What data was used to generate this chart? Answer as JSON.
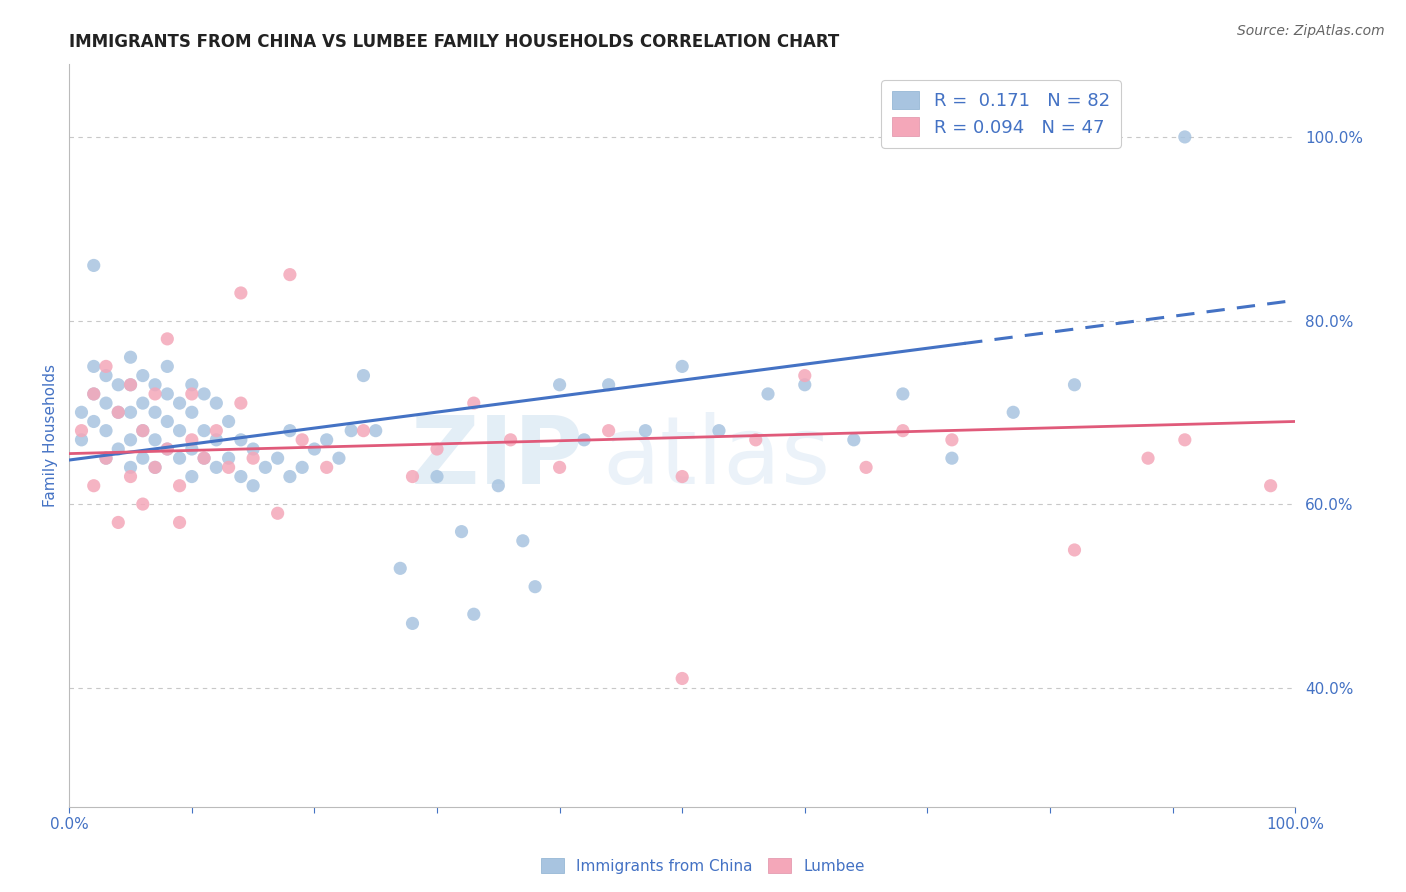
{
  "title": "IMMIGRANTS FROM CHINA VS LUMBEE FAMILY HOUSEHOLDS CORRELATION CHART",
  "source_text": "Source: ZipAtlas.com",
  "ylabel": "Family Households",
  "right_ytick_labels": [
    "40.0%",
    "60.0%",
    "80.0%",
    "100.0%"
  ],
  "right_ytick_values": [
    0.4,
    0.6,
    0.8,
    1.0
  ],
  "xlim": [
    0.0,
    1.0
  ],
  "ylim": [
    0.27,
    1.08
  ],
  "blue_color": "#a8c4e0",
  "blue_line_color": "#4472c4",
  "pink_color": "#f4a7b9",
  "pink_line_color": "#e05a7a",
  "legend_blue_label": "R =  0.171   N = 82",
  "legend_pink_label": "R = 0.094   N = 47",
  "watermark_zip": "ZIP",
  "watermark_atlas": "atlas",
  "grid_color": "#c8c8c8",
  "title_fontsize": 12,
  "tick_label_color": "#4472c4",
  "background_color": "#ffffff",
  "blue_trend_x0": 0.0,
  "blue_trend_x_solid_end": 0.73,
  "blue_trend_x1": 1.0,
  "blue_trend_y0": 0.648,
  "blue_trend_y1": 0.822,
  "pink_trend_x0": 0.0,
  "pink_trend_x1": 1.0,
  "pink_trend_y0": 0.655,
  "pink_trend_y1": 0.69,
  "blue_scatter_x": [
    0.01,
    0.01,
    0.02,
    0.02,
    0.02,
    0.03,
    0.03,
    0.03,
    0.03,
    0.04,
    0.04,
    0.04,
    0.05,
    0.05,
    0.05,
    0.05,
    0.05,
    0.06,
    0.06,
    0.06,
    0.06,
    0.07,
    0.07,
    0.07,
    0.07,
    0.08,
    0.08,
    0.08,
    0.08,
    0.09,
    0.09,
    0.09,
    0.1,
    0.1,
    0.1,
    0.1,
    0.11,
    0.11,
    0.11,
    0.12,
    0.12,
    0.12,
    0.13,
    0.13,
    0.14,
    0.14,
    0.15,
    0.15,
    0.16,
    0.17,
    0.18,
    0.18,
    0.19,
    0.2,
    0.21,
    0.22,
    0.23,
    0.24,
    0.25,
    0.27,
    0.28,
    0.3,
    0.32,
    0.33,
    0.35,
    0.37,
    0.38,
    0.4,
    0.42,
    0.44,
    0.47,
    0.5,
    0.53,
    0.57,
    0.6,
    0.64,
    0.68,
    0.72,
    0.77,
    0.82,
    0.02,
    0.91
  ],
  "blue_scatter_y": [
    0.67,
    0.7,
    0.69,
    0.72,
    0.75,
    0.65,
    0.68,
    0.71,
    0.74,
    0.66,
    0.7,
    0.73,
    0.64,
    0.67,
    0.7,
    0.73,
    0.76,
    0.65,
    0.68,
    0.71,
    0.74,
    0.64,
    0.67,
    0.7,
    0.73,
    0.66,
    0.69,
    0.72,
    0.75,
    0.65,
    0.68,
    0.71,
    0.63,
    0.66,
    0.7,
    0.73,
    0.65,
    0.68,
    0.72,
    0.64,
    0.67,
    0.71,
    0.65,
    0.69,
    0.63,
    0.67,
    0.62,
    0.66,
    0.64,
    0.65,
    0.63,
    0.68,
    0.64,
    0.66,
    0.67,
    0.65,
    0.68,
    0.74,
    0.68,
    0.53,
    0.47,
    0.63,
    0.57,
    0.48,
    0.62,
    0.56,
    0.51,
    0.73,
    0.67,
    0.73,
    0.68,
    0.75,
    0.68,
    0.72,
    0.73,
    0.67,
    0.72,
    0.65,
    0.7,
    0.73,
    0.86,
    1.0
  ],
  "pink_scatter_x": [
    0.01,
    0.02,
    0.02,
    0.03,
    0.03,
    0.04,
    0.04,
    0.05,
    0.05,
    0.06,
    0.06,
    0.07,
    0.07,
    0.08,
    0.08,
    0.09,
    0.09,
    0.1,
    0.1,
    0.11,
    0.12,
    0.13,
    0.14,
    0.15,
    0.17,
    0.19,
    0.21,
    0.24,
    0.28,
    0.3,
    0.33,
    0.36,
    0.4,
    0.44,
    0.5,
    0.56,
    0.6,
    0.65,
    0.68,
    0.72,
    0.82,
    0.88,
    0.91,
    0.14,
    0.18,
    0.5,
    0.98
  ],
  "pink_scatter_y": [
    0.68,
    0.72,
    0.62,
    0.75,
    0.65,
    0.7,
    0.58,
    0.73,
    0.63,
    0.68,
    0.6,
    0.72,
    0.64,
    0.66,
    0.78,
    0.62,
    0.58,
    0.67,
    0.72,
    0.65,
    0.68,
    0.64,
    0.71,
    0.65,
    0.59,
    0.67,
    0.64,
    0.68,
    0.63,
    0.66,
    0.71,
    0.67,
    0.64,
    0.68,
    0.63,
    0.67,
    0.74,
    0.64,
    0.68,
    0.67,
    0.55,
    0.65,
    0.67,
    0.83,
    0.85,
    0.41,
    0.62
  ]
}
